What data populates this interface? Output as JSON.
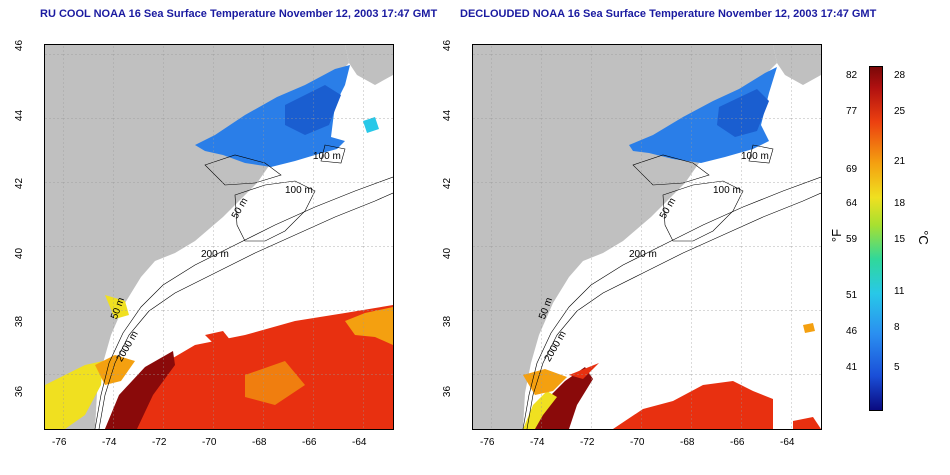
{
  "titles": {
    "left": "RU COOL NOAA 16 Sea Surface Temperature November 12, 2003 17:47 GMT",
    "right": "DECLOUDED NOAA 16 Sea Surface Temperature November 12, 2003 17:47 GMT"
  },
  "axes": {
    "lat_ticks": [
      "46",
      "44",
      "42",
      "40",
      "38",
      "36"
    ],
    "lon_ticks": [
      "-76",
      "-74",
      "-72",
      "-70",
      "-68",
      "-66",
      "-64"
    ]
  },
  "contours": {
    "left": [
      "100 m",
      "100 m",
      "50 m",
      "200 m",
      "50 m",
      "2000 m"
    ],
    "right": [
      "100 m",
      "100 m",
      "50 m",
      "200 m",
      "50 m",
      "2000 m"
    ]
  },
  "colorbar": {
    "fahrenheit": [
      "82",
      "77",
      "69",
      "64",
      "59",
      "51",
      "46",
      "41"
    ],
    "celsius": [
      "28",
      "25",
      "21",
      "18",
      "15",
      "11",
      "8",
      "5"
    ],
    "unit_f": "°F",
    "unit_c": "°C"
  },
  "colors": {
    "land": "#c0c0c0",
    "title": "#1a1aa0",
    "cold": "#2a7ee8",
    "warm": "#e83010",
    "hot": "#8a0a0a",
    "yellow": "#f0e020"
  }
}
